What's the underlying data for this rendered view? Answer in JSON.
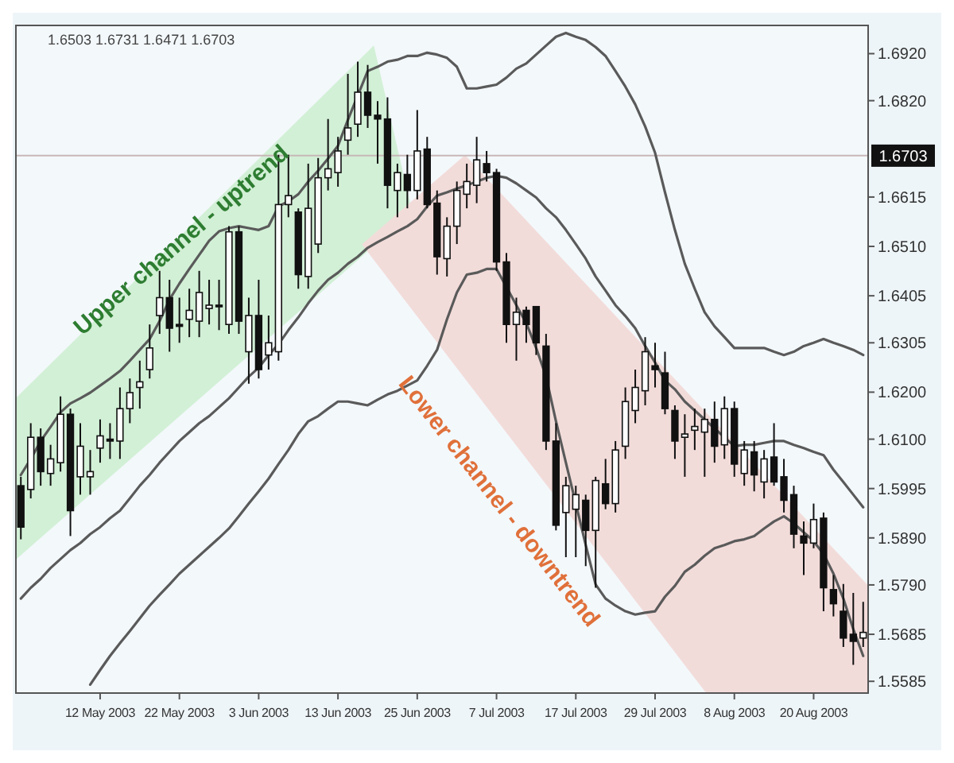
{
  "chart_data": {
    "type": "candlestick",
    "categories": [
      null,
      null,
      null,
      null,
      null,
      null,
      null,
      null,
      "12 May 2003",
      null,
      null,
      null,
      null,
      null,
      null,
      null,
      "22 May 2003",
      null,
      null,
      null,
      null,
      null,
      null,
      null,
      "3 Jun 2003",
      null,
      null,
      null,
      null,
      null,
      null,
      null,
      "13 Jun 2003",
      null,
      null,
      null,
      null,
      null,
      null,
      null,
      "25 Jun 2003",
      null,
      null,
      null,
      null,
      null,
      null,
      null,
      "7 Jul 2003",
      null,
      null,
      null,
      null,
      null,
      null,
      null,
      "17 Jul 2003",
      null,
      null,
      null,
      null,
      null,
      null,
      null,
      "29 Jul 2003",
      null,
      null,
      null,
      null,
      null,
      null,
      null,
      "8 Aug 2003",
      null,
      null,
      null,
      null,
      null,
      null,
      null,
      "20 Aug 2003",
      null,
      null,
      null,
      null,
      null
    ],
    "ohlc": [
      [
        1.6001,
        1.602,
        1.5887,
        1.5913
      ],
      [
        1.5993,
        1.6134,
        1.5974,
        1.6104
      ],
      [
        1.6104,
        1.6123,
        1.6001,
        1.6031
      ],
      [
        1.6027,
        1.6088,
        1.6001,
        1.6058
      ],
      [
        1.605,
        1.6191,
        1.6031,
        1.6153
      ],
      [
        1.6153,
        1.6165,
        1.5894,
        1.5948
      ],
      [
        1.602,
        1.6134,
        1.5982,
        1.6085
      ],
      [
        1.602,
        1.6077,
        1.5982,
        1.6031
      ],
      [
        1.6081,
        1.6142,
        1.605,
        1.6107
      ],
      [
        1.61,
        1.6134,
        1.6058,
        1.6096
      ],
      [
        1.6096,
        1.621,
        1.6058,
        1.6165
      ],
      [
        1.6165,
        1.6229,
        1.6134,
        1.6199
      ],
      [
        1.621,
        1.6267,
        1.6165,
        1.6222
      ],
      [
        1.6248,
        1.6344,
        1.6229,
        1.6294
      ],
      [
        1.6363,
        1.6458,
        1.6324,
        1.6401
      ],
      [
        1.6401,
        1.6439,
        1.6286,
        1.6336
      ],
      [
        1.6344,
        1.6401,
        1.6305,
        1.634
      ],
      [
        1.6355,
        1.642,
        1.6317,
        1.6374
      ],
      [
        1.6351,
        1.6458,
        1.6317,
        1.6412
      ],
      [
        1.6378,
        1.6439,
        1.6344,
        1.6385
      ],
      [
        1.6385,
        1.6439,
        1.6332,
        1.6382
      ],
      [
        1.6344,
        1.6553,
        1.6324,
        1.6541
      ],
      [
        1.6541,
        1.6553,
        1.6324,
        1.6351
      ],
      [
        1.6286,
        1.6401,
        1.6218,
        1.6363
      ],
      [
        1.6363,
        1.6439,
        1.6229,
        1.6248
      ],
      [
        1.6279,
        1.6363,
        1.6248,
        1.6305
      ],
      [
        1.6286,
        1.6705,
        1.6267,
        1.6599
      ],
      [
        1.6599,
        1.6705,
        1.6572,
        1.6618
      ],
      [
        1.6583,
        1.6591,
        1.642,
        1.645
      ],
      [
        1.6446,
        1.6686,
        1.642,
        1.6591
      ],
      [
        1.6515,
        1.6698,
        1.6496,
        1.6656
      ],
      [
        1.6656,
        1.6781,
        1.6629,
        1.6675
      ],
      [
        1.6667,
        1.6743,
        1.6637,
        1.6713
      ],
      [
        1.6736,
        1.6877,
        1.6705,
        1.6762
      ],
      [
        1.677,
        1.6903,
        1.6743,
        1.6838
      ],
      [
        1.6838,
        1.6896,
        1.6762,
        1.6789
      ],
      [
        1.6789,
        1.6819,
        1.6686,
        1.6781
      ],
      [
        1.6781,
        1.6827,
        1.6591,
        1.664
      ],
      [
        1.6629,
        1.6686,
        1.6572,
        1.6667
      ],
      [
        1.6663,
        1.6705,
        1.6591,
        1.6629
      ],
      [
        1.6629,
        1.68,
        1.661,
        1.6713
      ],
      [
        1.6717,
        1.6743,
        1.6591,
        1.6599
      ],
      [
        1.6602,
        1.6629,
        1.645,
        1.6488
      ],
      [
        1.6484,
        1.6572,
        1.6446,
        1.6553
      ],
      [
        1.6553,
        1.6648,
        1.6515,
        1.6629
      ],
      [
        1.6621,
        1.6686,
        1.6591,
        1.6648
      ],
      [
        1.664,
        1.6743,
        1.6602,
        1.6694
      ],
      [
        1.6686,
        1.6713,
        1.6648,
        1.6667
      ],
      [
        1.6667,
        1.6675,
        1.6458,
        1.6477
      ],
      [
        1.6477,
        1.6496,
        1.6305,
        1.6344
      ],
      [
        1.6344,
        1.6401,
        1.6267,
        1.637
      ],
      [
        1.6374,
        1.6382,
        1.6305,
        1.6344
      ],
      [
        1.6382,
        1.6382,
        1.6279,
        1.6305
      ],
      [
        1.6298,
        1.6324,
        1.6077,
        1.6096
      ],
      [
        1.6096,
        1.6134,
        1.5906,
        1.5917
      ],
      [
        1.5944,
        1.602,
        1.5849,
        1.6001
      ],
      [
        1.5951,
        1.6001,
        1.5849,
        1.5982
      ],
      [
        1.597,
        1.5982,
        1.583,
        1.5906
      ],
      [
        1.5906,
        1.602,
        1.5784,
        1.6012
      ],
      [
        1.6005,
        1.6058,
        1.5951,
        1.5963
      ],
      [
        1.5963,
        1.6096,
        1.5944,
        1.6077
      ],
      [
        1.6085,
        1.621,
        1.6058,
        1.618
      ],
      [
        1.6161,
        1.6248,
        1.6134,
        1.621
      ],
      [
        1.6203,
        1.6317,
        1.6172,
        1.6286
      ],
      [
        1.6256,
        1.6305,
        1.621,
        1.6248
      ],
      [
        1.6241,
        1.6286,
        1.6153,
        1.6165
      ],
      [
        1.6161,
        1.6172,
        1.6058,
        1.6096
      ],
      [
        1.6104,
        1.6153,
        1.602,
        1.6111
      ],
      [
        1.6119,
        1.6165,
        1.6077,
        1.6127
      ],
      [
        1.6115,
        1.6165,
        1.602,
        1.6142
      ],
      [
        1.6142,
        1.618,
        1.605,
        1.6085
      ],
      [
        1.6088,
        1.6191,
        1.6058,
        1.6165
      ],
      [
        1.6165,
        1.618,
        1.602,
        1.6047
      ],
      [
        1.6027,
        1.6096,
        1.6001,
        1.6077
      ],
      [
        1.6073,
        1.6096,
        1.5989,
        1.6024
      ],
      [
        1.6009,
        1.6077,
        1.5974,
        1.6058
      ],
      [
        1.6062,
        1.6134,
        1.6001,
        1.6009
      ],
      [
        1.602,
        1.6058,
        1.5944,
        1.597
      ],
      [
        1.5982,
        1.6001,
        1.5868,
        1.5898
      ],
      [
        1.5894,
        1.5925,
        1.5811,
        1.5879
      ],
      [
        1.5879,
        1.5963,
        1.5868,
        1.5929
      ],
      [
        1.5932,
        1.5944,
        1.5734,
        1.5784
      ],
      [
        1.578,
        1.5811,
        1.5723,
        1.575
      ],
      [
        1.5734,
        1.5792,
        1.5658,
        1.5677
      ],
      [
        1.5685,
        1.5773,
        1.562,
        1.567
      ],
      [
        1.5677,
        1.5754,
        1.5658,
        1.5689
      ]
    ],
    "series": [
      {
        "type": "line",
        "color": "#5a5a5a",
        "values": [
          1.6024,
          1.6058,
          1.6096,
          1.6126,
          1.6157,
          1.6176,
          1.6187,
          1.6199,
          1.6214,
          1.6229,
          1.6245,
          1.6267,
          1.629,
          1.6313,
          1.6351,
          1.6397,
          1.6431,
          1.6462,
          1.6492,
          1.6522,
          1.6542,
          1.6549,
          1.6553,
          1.6549,
          1.6545,
          1.6553,
          1.6595,
          1.6606,
          1.6621,
          1.6648,
          1.6671,
          1.6697,
          1.6724,
          1.6779,
          1.6831,
          1.6883,
          1.6892,
          1.6903,
          1.6907,
          1.6915,
          1.6915,
          1.6922,
          1.6918,
          1.6911,
          1.6892,
          1.6846,
          1.6846,
          1.685,
          1.6854,
          1.6869,
          1.6888,
          1.6899,
          1.6918,
          1.6937,
          1.6956,
          1.6964,
          1.6956,
          1.6949,
          1.6934,
          1.6915,
          1.6883,
          1.685,
          1.6812,
          1.6765,
          1.6709,
          1.6625,
          1.6545,
          1.6473,
          1.642,
          1.637,
          1.634,
          1.6317,
          1.6294,
          1.6294,
          1.6294,
          1.6294,
          1.6286,
          1.6279,
          1.6286,
          1.6298,
          1.6305,
          1.6313,
          1.6305,
          1.6298,
          1.629,
          1.6279
        ]
      },
      {
        "type": "line",
        "color": "#5a5a5a",
        "values": [
          1.5761,
          1.5784,
          1.5803,
          1.5826,
          1.5845,
          1.5864,
          1.5879,
          1.5898,
          1.5913,
          1.5932,
          1.5948,
          1.5974,
          1.6001,
          1.6024,
          1.605,
          1.6073,
          1.6096,
          1.6115,
          1.6134,
          1.6149,
          1.6168,
          1.6187,
          1.621,
          1.6233,
          1.6252,
          1.6279,
          1.6302,
          1.6332,
          1.6359,
          1.6389,
          1.6416,
          1.6439,
          1.6454,
          1.6473,
          1.6488,
          1.6507,
          1.6519,
          1.653,
          1.6542,
          1.6553,
          1.6568,
          1.6595,
          1.6618,
          1.6625,
          1.6633,
          1.664,
          1.6648,
          1.6656,
          1.666,
          1.6656,
          1.6644,
          1.6629,
          1.6614,
          1.6591,
          1.6572,
          1.6545,
          1.6515,
          1.6484,
          1.6446,
          1.6416,
          1.6385,
          1.6362,
          1.6336,
          1.6298,
          1.6263,
          1.6225,
          1.6206,
          1.618,
          1.6161,
          1.6142,
          1.6123,
          1.6104,
          1.6085,
          1.6088,
          1.6088,
          1.6092,
          1.6096,
          1.6096,
          1.6088,
          1.6081,
          1.6073,
          1.6066,
          1.6035,
          1.6009,
          1.5982,
          1.5955
        ]
      },
      {
        "type": "line",
        "color": "#5a5a5a",
        "values": [
          null,
          null,
          null,
          null,
          null,
          null,
          null,
          1.5578,
          1.5609,
          1.5639,
          1.5666,
          1.5692,
          1.5719,
          1.5746,
          1.5769,
          1.5791,
          1.5814,
          1.5833,
          1.5852,
          1.5871,
          1.589,
          1.591,
          1.5936,
          1.5963,
          1.5989,
          1.6016,
          1.6047,
          1.6077,
          1.6111,
          1.6138,
          1.6149,
          1.6165,
          1.618,
          1.618,
          1.6176,
          1.6172,
          1.6184,
          1.6195,
          1.6203,
          1.6214,
          1.6225,
          1.6256,
          1.629,
          1.6355,
          1.6412,
          1.645,
          1.6454,
          1.6462,
          1.6462,
          1.6424,
          1.6385,
          1.6347,
          1.6294,
          1.6233,
          1.6138,
          1.605,
          1.5963,
          1.5875,
          1.5791,
          1.5761,
          1.5746,
          1.5734,
          1.5727,
          1.5731,
          1.5734,
          1.5765,
          1.5788,
          1.5818,
          1.5833,
          1.5852,
          1.5868,
          1.5875,
          1.5883,
          1.5887,
          1.5894,
          1.591,
          1.5925,
          1.5936,
          1.5921,
          1.5902,
          1.5883,
          1.5856,
          1.5814,
          1.5761,
          1.5696,
          1.5639
        ]
      }
    ],
    "ylim": [
      1.556,
      1.698
    ],
    "yticks": [
      {
        "value": 1.692,
        "label": "1.6920"
      },
      {
        "value": 1.682,
        "label": "1.6820"
      },
      {
        "value": 1.6615,
        "label": "1.6615"
      },
      {
        "value": 1.651,
        "label": "1.6510"
      },
      {
        "value": 1.6405,
        "label": "1.6405"
      },
      {
        "value": 1.6305,
        "label": "1.6305"
      },
      {
        "value": 1.62,
        "label": "1.6200"
      },
      {
        "value": 1.61,
        "label": "1.6100"
      },
      {
        "value": 1.5995,
        "label": "1.5995"
      },
      {
        "value": 1.589,
        "label": "1.5890"
      },
      {
        "value": 1.579,
        "label": "1.5790"
      },
      {
        "value": 1.5685,
        "label": "1.5685"
      },
      {
        "value": 1.5585,
        "label": "1.5585"
      }
    ],
    "ref_lines": [
      {
        "axis": "y",
        "value": 1.6703,
        "label": "1.6703",
        "color": "#c8b8b8"
      }
    ],
    "annotations": [
      "1.6503 1.6731 1.6471 1.6703",
      "Upper channel - uptrend",
      "Lower channel - downtrend"
    ]
  }
}
